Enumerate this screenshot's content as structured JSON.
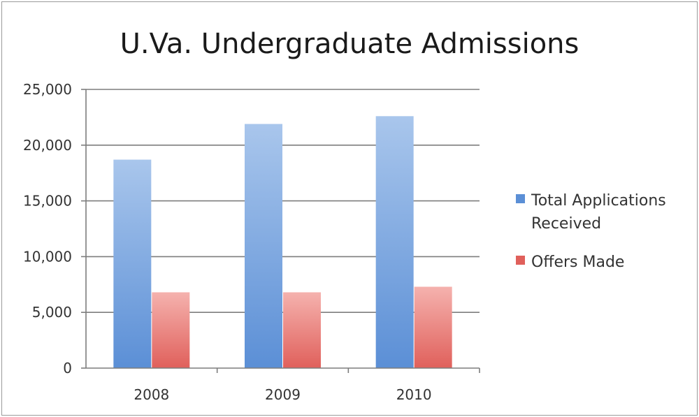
{
  "chart_data": {
    "type": "bar",
    "title": "U.Va. Undergraduate Admissions",
    "categories": [
      "2008",
      "2009",
      "2010"
    ],
    "series": [
      {
        "name": "Total Applications Received",
        "legend_lines": [
          "Total Applications",
          "Received"
        ],
        "values": [
          18700,
          21900,
          22600
        ],
        "color": "#5b8fd6",
        "color_light": "#a9c6ec"
      },
      {
        "name": "Offers Made",
        "legend_lines": [
          "Offers Made"
        ],
        "values": [
          6800,
          6800,
          7300
        ],
        "color": "#e0605b",
        "color_light": "#f5b2ae"
      }
    ],
    "ylim": [
      0,
      25000
    ],
    "yticks": [
      "0",
      "5,000",
      "10,000",
      "15,000",
      "20,000",
      "25,000"
    ],
    "grid": true,
    "legend_position": "right"
  }
}
